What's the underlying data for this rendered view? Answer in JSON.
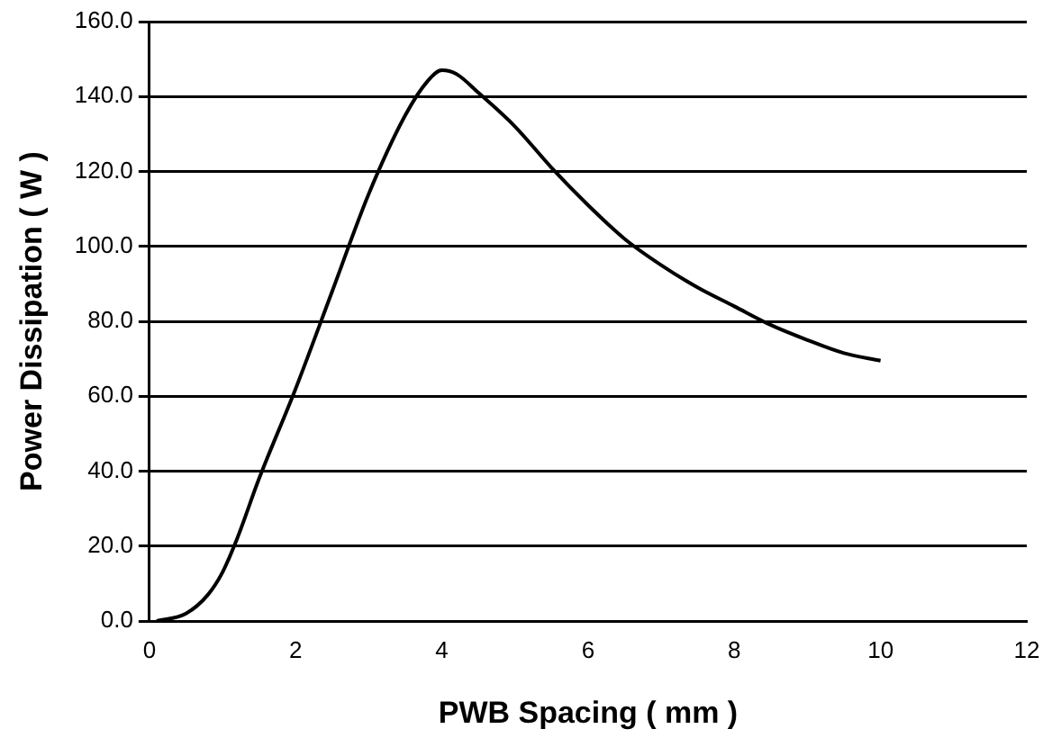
{
  "chart_data": {
    "type": "line",
    "xlabel": "PWB Spacing ( mm )",
    "ylabel": "Power Dissipation ( W )",
    "x": [
      0.1,
      0.5,
      0.8,
      1.0,
      1.2,
      1.5,
      2.0,
      2.5,
      3.0,
      3.5,
      3.8,
      4.0,
      4.2,
      4.5,
      5.0,
      5.5,
      6.0,
      6.5,
      7.0,
      7.5,
      8.0,
      8.5,
      9.0,
      9.5,
      10.0
    ],
    "series": [
      {
        "color": "#000000",
        "values": [
          0,
          2,
          7,
          13,
          22,
          38,
          62,
          88,
          114,
          135,
          144,
          147,
          146,
          141,
          132,
          121,
          111,
          102,
          95,
          89,
          84,
          79,
          75,
          71.5,
          69.5
        ]
      }
    ],
    "xlim": [
      0,
      12
    ],
    "xticks": [
      0,
      2,
      4,
      6,
      8,
      10,
      12
    ],
    "ylim": [
      0,
      160
    ],
    "yticks": [
      {
        "value": 0,
        "label": "0.0"
      },
      {
        "value": 20,
        "label": "20.0"
      },
      {
        "value": 40,
        "label": "40.0"
      },
      {
        "value": 60,
        "label": "60.0"
      },
      {
        "value": 80,
        "label": "80.0"
      },
      {
        "value": 100,
        "label": "100.0"
      },
      {
        "value": 120,
        "label": "120.0"
      },
      {
        "value": 140,
        "label": "140.0"
      },
      {
        "value": 160,
        "label": "160.0"
      }
    ],
    "grid": "y",
    "legend": false,
    "marker": "none",
    "line_style": "solid"
  }
}
